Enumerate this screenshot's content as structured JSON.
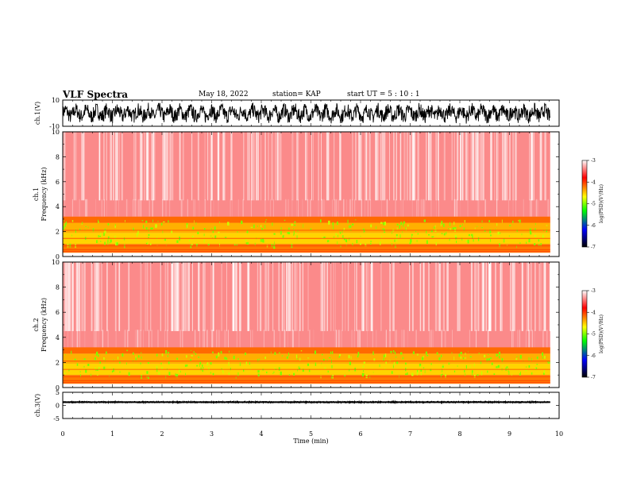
{
  "header": {
    "title": "VLF Spectra",
    "date": "May 18, 2022",
    "station": "station= KAP",
    "start": "start  UT =   5  : 10 : 1"
  },
  "chart_data": [
    {
      "id": "ch1-waveform",
      "type": "line",
      "ylabel": "ch.1(V)",
      "ylim": [
        -10,
        10
      ],
      "yticks": [
        "10",
        "-10"
      ],
      "x_range": [
        0,
        10
      ],
      "data_end": 9.82
    },
    {
      "id": "ch1-spectrogram",
      "type": "heatmap",
      "ylabel": "ch.1",
      "ylabel2": "Frequency (kHz)",
      "ylim": [
        0,
        10
      ],
      "yticks": [
        "0",
        "2",
        "4",
        "6",
        "8",
        "10"
      ],
      "x_range": [
        0,
        10
      ],
      "data_end": 9.82,
      "colorbar": {
        "label": "log(PSD)(V²/Hz)",
        "range": [
          -7,
          -3
        ],
        "ticks": [
          "-3",
          "-4",
          "-5",
          "-6",
          "-7"
        ]
      }
    },
    {
      "id": "ch2-spectrogram",
      "type": "heatmap",
      "ylabel": "ch.2",
      "ylabel2": "Frequency (kHz)",
      "ylim": [
        0,
        10
      ],
      "yticks": [
        "0",
        "2",
        "4",
        "6",
        "8",
        "10"
      ],
      "x_range": [
        0,
        10
      ],
      "data_end": 9.82,
      "colorbar": {
        "label": "log(PSD)(V²/Hz)",
        "range": [
          -7,
          -3
        ],
        "ticks": [
          "-3",
          "-4",
          "-5",
          "-6",
          "-7"
        ]
      }
    },
    {
      "id": "ch3-waveform",
      "type": "line",
      "ylabel": "ch.3(V)",
      "ylim": [
        -5,
        5
      ],
      "yticks": [
        "5",
        "0",
        "-5"
      ],
      "x_range": [
        0,
        10
      ],
      "data_end": 9.82,
      "xlabel": "Time  (min)",
      "xticks": [
        "0",
        "1",
        "2",
        "3",
        "4",
        "5",
        "6",
        "7",
        "8",
        "9",
        "10"
      ]
    }
  ],
  "colors": {
    "ink": "#000000",
    "colormap": [
      "#000000",
      "#0000ff",
      "#00ff00",
      "#ffff00",
      "#ff0000",
      "#ffffff"
    ]
  }
}
